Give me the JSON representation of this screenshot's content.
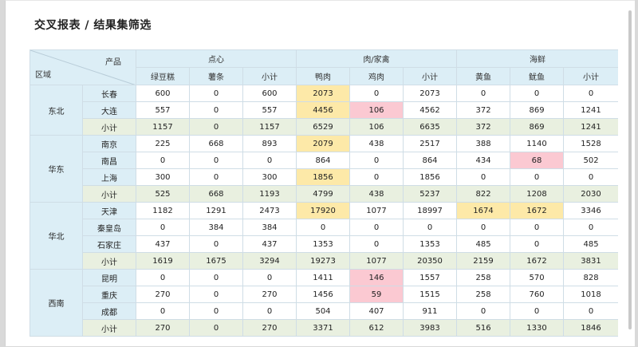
{
  "page_title": "交叉报表 / 结果集筛选",
  "corner": {
    "product": "产品",
    "region": "区域"
  },
  "groups": [
    "点心",
    "肉/家禽",
    "海鲜"
  ],
  "columns": [
    "绿豆糕",
    "薯条",
    "小计",
    "鸭肉",
    "鸡肉",
    "小计",
    "黄鱼",
    "鱿鱼",
    "小计"
  ],
  "colors": {
    "highlight_yellow": "#fde9a8",
    "highlight_pink": "#fbc9d2",
    "header_blue": "#dceef6",
    "subtotal_green": "#e9f0e0"
  },
  "regions": [
    {
      "name": "东北",
      "rows": [
        {
          "city": "长春",
          "values": [
            "600",
            "0",
            "600",
            "2073",
            "0",
            "2073",
            "0",
            "0",
            "0"
          ],
          "highlights": {
            "3": "y"
          }
        },
        {
          "city": "大连",
          "values": [
            "557",
            "0",
            "557",
            "4456",
            "106",
            "4562",
            "372",
            "869",
            "1241"
          ],
          "highlights": {
            "3": "y",
            "4": "p"
          }
        },
        {
          "city": "小计",
          "subtotal": true,
          "values": [
            "1157",
            "0",
            "1157",
            "6529",
            "106",
            "6635",
            "372",
            "869",
            "1241"
          ]
        }
      ]
    },
    {
      "name": "华东",
      "rows": [
        {
          "city": "南京",
          "values": [
            "225",
            "668",
            "893",
            "2079",
            "438",
            "2517",
            "388",
            "1140",
            "1528"
          ],
          "highlights": {
            "3": "y"
          }
        },
        {
          "city": "南昌",
          "values": [
            "0",
            "0",
            "0",
            "864",
            "0",
            "864",
            "434",
            "68",
            "502"
          ],
          "highlights": {
            "7": "p"
          }
        },
        {
          "city": "上海",
          "values": [
            "300",
            "0",
            "300",
            "1856",
            "0",
            "1856",
            "0",
            "0",
            "0"
          ],
          "highlights": {
            "3": "y"
          }
        },
        {
          "city": "小计",
          "subtotal": true,
          "values": [
            "525",
            "668",
            "1193",
            "4799",
            "438",
            "5237",
            "822",
            "1208",
            "2030"
          ]
        }
      ]
    },
    {
      "name": "华北",
      "rows": [
        {
          "city": "天津",
          "values": [
            "1182",
            "1291",
            "2473",
            "17920",
            "1077",
            "18997",
            "1674",
            "1672",
            "3346"
          ],
          "highlights": {
            "3": "y",
            "6": "y",
            "7": "y"
          }
        },
        {
          "city": "秦皇岛",
          "values": [
            "0",
            "384",
            "384",
            "0",
            "0",
            "0",
            "0",
            "0",
            "0"
          ]
        },
        {
          "city": "石家庄",
          "values": [
            "437",
            "0",
            "437",
            "1353",
            "0",
            "1353",
            "485",
            "0",
            "485"
          ]
        },
        {
          "city": "小计",
          "subtotal": true,
          "values": [
            "1619",
            "1675",
            "3294",
            "19273",
            "1077",
            "20350",
            "2159",
            "1672",
            "3831"
          ]
        }
      ]
    },
    {
      "name": "西南",
      "rows": [
        {
          "city": "昆明",
          "values": [
            "0",
            "0",
            "0",
            "1411",
            "146",
            "1557",
            "258",
            "570",
            "828"
          ],
          "highlights": {
            "4": "p"
          }
        },
        {
          "city": "重庆",
          "values": [
            "270",
            "0",
            "270",
            "1456",
            "59",
            "1515",
            "258",
            "760",
            "1018"
          ],
          "highlights": {
            "4": "p"
          }
        },
        {
          "city": "成都",
          "values": [
            "0",
            "0",
            "0",
            "504",
            "407",
            "911",
            "0",
            "0",
            "0"
          ]
        },
        {
          "city": "小计",
          "subtotal": true,
          "values": [
            "270",
            "0",
            "270",
            "3371",
            "612",
            "3983",
            "516",
            "1330",
            "1846"
          ]
        }
      ]
    }
  ]
}
